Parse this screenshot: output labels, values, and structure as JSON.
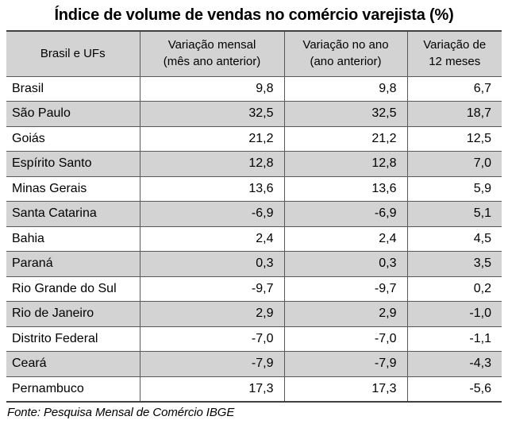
{
  "page": {
    "title": "Índice de volume de vendas no comércio varejista (%)",
    "source_note": "Fonte: Pesquisa Mensal de Comércio IBGE"
  },
  "colors": {
    "header_fill": "#d3d3d3",
    "alt_row_fill": "#d3d3d3",
    "row_fill": "#ffffff",
    "grid_line": "#595959",
    "outer_line": "#404040",
    "text": "#000000"
  },
  "chart_data": {
    "type": "table",
    "title": "Índice de volume de vendas no comércio varejista (%)",
    "source": "Fonte: Pesquisa Mensal de Comércio IBGE",
    "columns": [
      "Brasil e UFs",
      "Variação mensal (mês ano anterior)",
      "Variação no ano (ano anterior)",
      "Variação de 12 meses"
    ],
    "columns_display": [
      "Brasil e UFs",
      "Variação mensal\n(mês ano anterior)",
      "Variação no ano\n(ano anterior)",
      "Variação de\n12 meses"
    ],
    "rows": [
      {
        "label": "Brasil",
        "display": [
          "9,8",
          "9,8",
          "6,7"
        ],
        "values": [
          9.8,
          9.8,
          6.7
        ]
      },
      {
        "label": "São Paulo",
        "display": [
          "32,5",
          "32,5",
          "18,7"
        ],
        "values": [
          32.5,
          32.5,
          18.7
        ]
      },
      {
        "label": "Goiás",
        "display": [
          "21,2",
          "21,2",
          "12,5"
        ],
        "values": [
          21.2,
          21.2,
          12.5
        ]
      },
      {
        "label": "Espírito Santo",
        "display": [
          "12,8",
          "12,8",
          "7,0"
        ],
        "values": [
          12.8,
          12.8,
          7.0
        ]
      },
      {
        "label": "Minas Gerais",
        "display": [
          "13,6",
          "13,6",
          "5,9"
        ],
        "values": [
          13.6,
          13.6,
          5.9
        ]
      },
      {
        "label": "Santa Catarina",
        "display": [
          "-6,9",
          "-6,9",
          "5,1"
        ],
        "values": [
          -6.9,
          -6.9,
          5.1
        ]
      },
      {
        "label": "Bahia",
        "display": [
          "2,4",
          "2,4",
          "4,5"
        ],
        "values": [
          2.4,
          2.4,
          4.5
        ]
      },
      {
        "label": "Paraná",
        "display": [
          "0,3",
          "0,3",
          "3,5"
        ],
        "values": [
          0.3,
          0.3,
          3.5
        ]
      },
      {
        "label": "Rio Grande do Sul",
        "display": [
          "-9,7",
          "-9,7",
          "0,2"
        ],
        "values": [
          -9.7,
          -9.7,
          0.2
        ]
      },
      {
        "label": "Rio de Janeiro",
        "display": [
          "2,9",
          "2,9",
          "-1,0"
        ],
        "values": [
          2.9,
          2.9,
          -1.0
        ]
      },
      {
        "label": "Distrito Federal",
        "display": [
          "-7,0",
          "-7,0",
          "-1,1"
        ],
        "values": [
          -7.0,
          -7.0,
          -1.1
        ]
      },
      {
        "label": "Ceará",
        "display": [
          "-7,9",
          "-7,9",
          "-4,3"
        ],
        "values": [
          -7.9,
          -7.9,
          -4.3
        ]
      },
      {
        "label": "Pernambuco",
        "display": [
          "17,3",
          "17,3",
          "-5,6"
        ],
        "values": [
          17.3,
          17.3,
          -5.6
        ]
      }
    ]
  }
}
